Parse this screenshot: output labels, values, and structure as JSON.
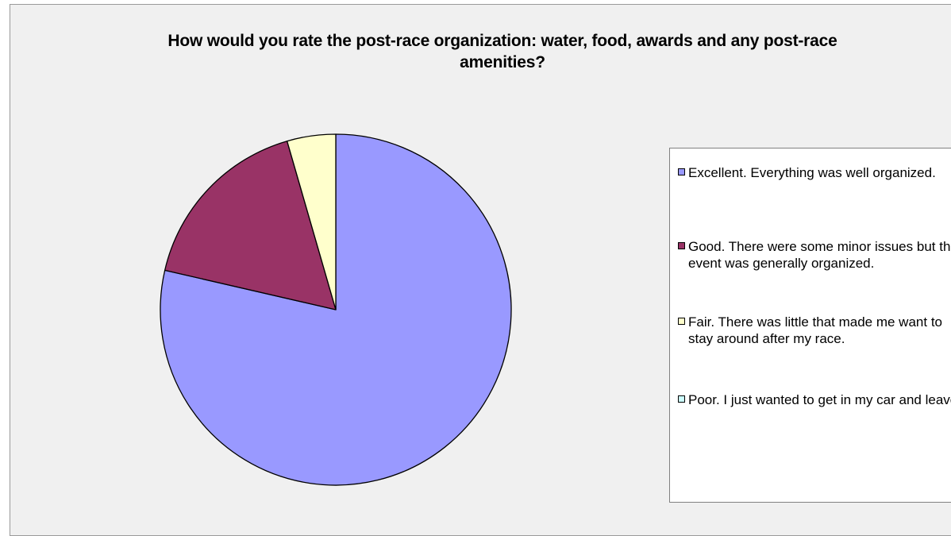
{
  "chart_data": {
    "type": "pie",
    "title": "How would you rate the post-race organization: water, food, awards and any post-race amenities?",
    "categories": [
      "Excellent. Everything was well organized.",
      "Good.  There were some minor issues but the event was generally organized.",
      "Fair.  There was little that made me want to stay around after my race.",
      "Poor.  I just wanted to get in my car and leave."
    ],
    "values": [
      79,
      17,
      4.5,
      0
    ],
    "colors": [
      "#9999ff",
      "#993366",
      "#ffffcc",
      "#ccffff"
    ],
    "legend_position": "right"
  }
}
